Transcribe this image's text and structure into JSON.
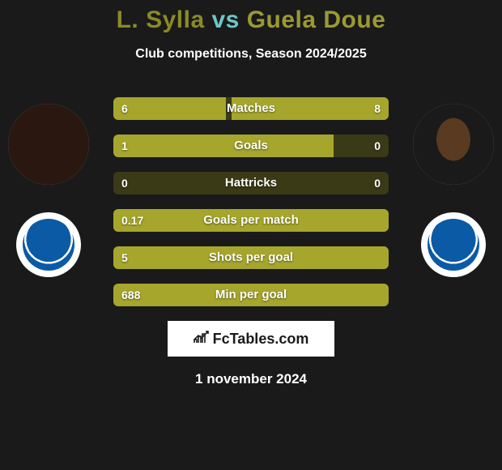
{
  "title": {
    "player1": "L. Sylla",
    "vs": " vs ",
    "player2": "Guela Doue",
    "color1": "#8a8a28",
    "colorVs": "#6fc7c7",
    "color2": "#9a9a32"
  },
  "subtitle": "Club competitions, Season 2024/2025",
  "stats": {
    "bar_bg": "#3a3a16",
    "bar_left_color": "#a6a62c",
    "bar_right_color": "#a6a62c",
    "rows": [
      {
        "label": "Matches",
        "left_val": "6",
        "right_val": "8",
        "left_pct": 41,
        "right_pct": 57
      },
      {
        "label": "Goals",
        "left_val": "1",
        "right_val": "0",
        "left_pct": 80,
        "right_pct": 0
      },
      {
        "label": "Hattricks",
        "left_val": "0",
        "right_val": "0",
        "left_pct": 0,
        "right_pct": 0
      },
      {
        "label": "Goals per match",
        "left_val": "0.17",
        "right_val": "",
        "left_pct": 100,
        "right_pct": 0
      },
      {
        "label": "Shots per goal",
        "left_val": "5",
        "right_val": "",
        "left_pct": 100,
        "right_pct": 0
      },
      {
        "label": "Min per goal",
        "left_val": "688",
        "right_val": "",
        "left_pct": 100,
        "right_pct": 0
      }
    ]
  },
  "branding": "FcTables.com",
  "date": "1 november 2024",
  "colors": {
    "background": "#1a1a1a",
    "text": "#ffffff"
  }
}
